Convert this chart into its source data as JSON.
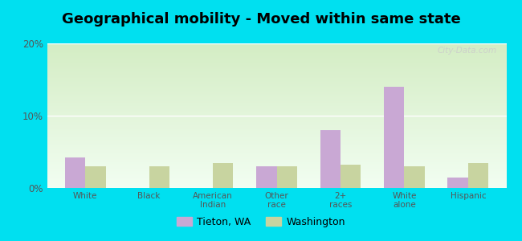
{
  "title": "Geographical mobility - Moved within same state",
  "categories": [
    "White",
    "Black",
    "American\nIndian",
    "Other\nrace",
    "2+\nraces",
    "White\nalone",
    "Hispanic"
  ],
  "tieton": [
    4.2,
    0.0,
    0.0,
    3.0,
    8.0,
    14.0,
    1.5
  ],
  "washington": [
    3.0,
    3.0,
    3.5,
    3.0,
    3.2,
    3.0,
    3.5
  ],
  "tieton_color": "#c9a8d4",
  "washington_color": "#c8d4a0",
  "gradient_top": "#d4edc4",
  "gradient_bottom": "#f2fef2",
  "outer_bg": "#00e0f0",
  "ylim": [
    0,
    20
  ],
  "yticks": [
    0,
    10,
    20
  ],
  "ytick_labels": [
    "0%",
    "10%",
    "20%"
  ],
  "title_fontsize": 13,
  "legend_tieton": "Tieton, WA",
  "legend_washington": "Washington",
  "bar_width": 0.32
}
